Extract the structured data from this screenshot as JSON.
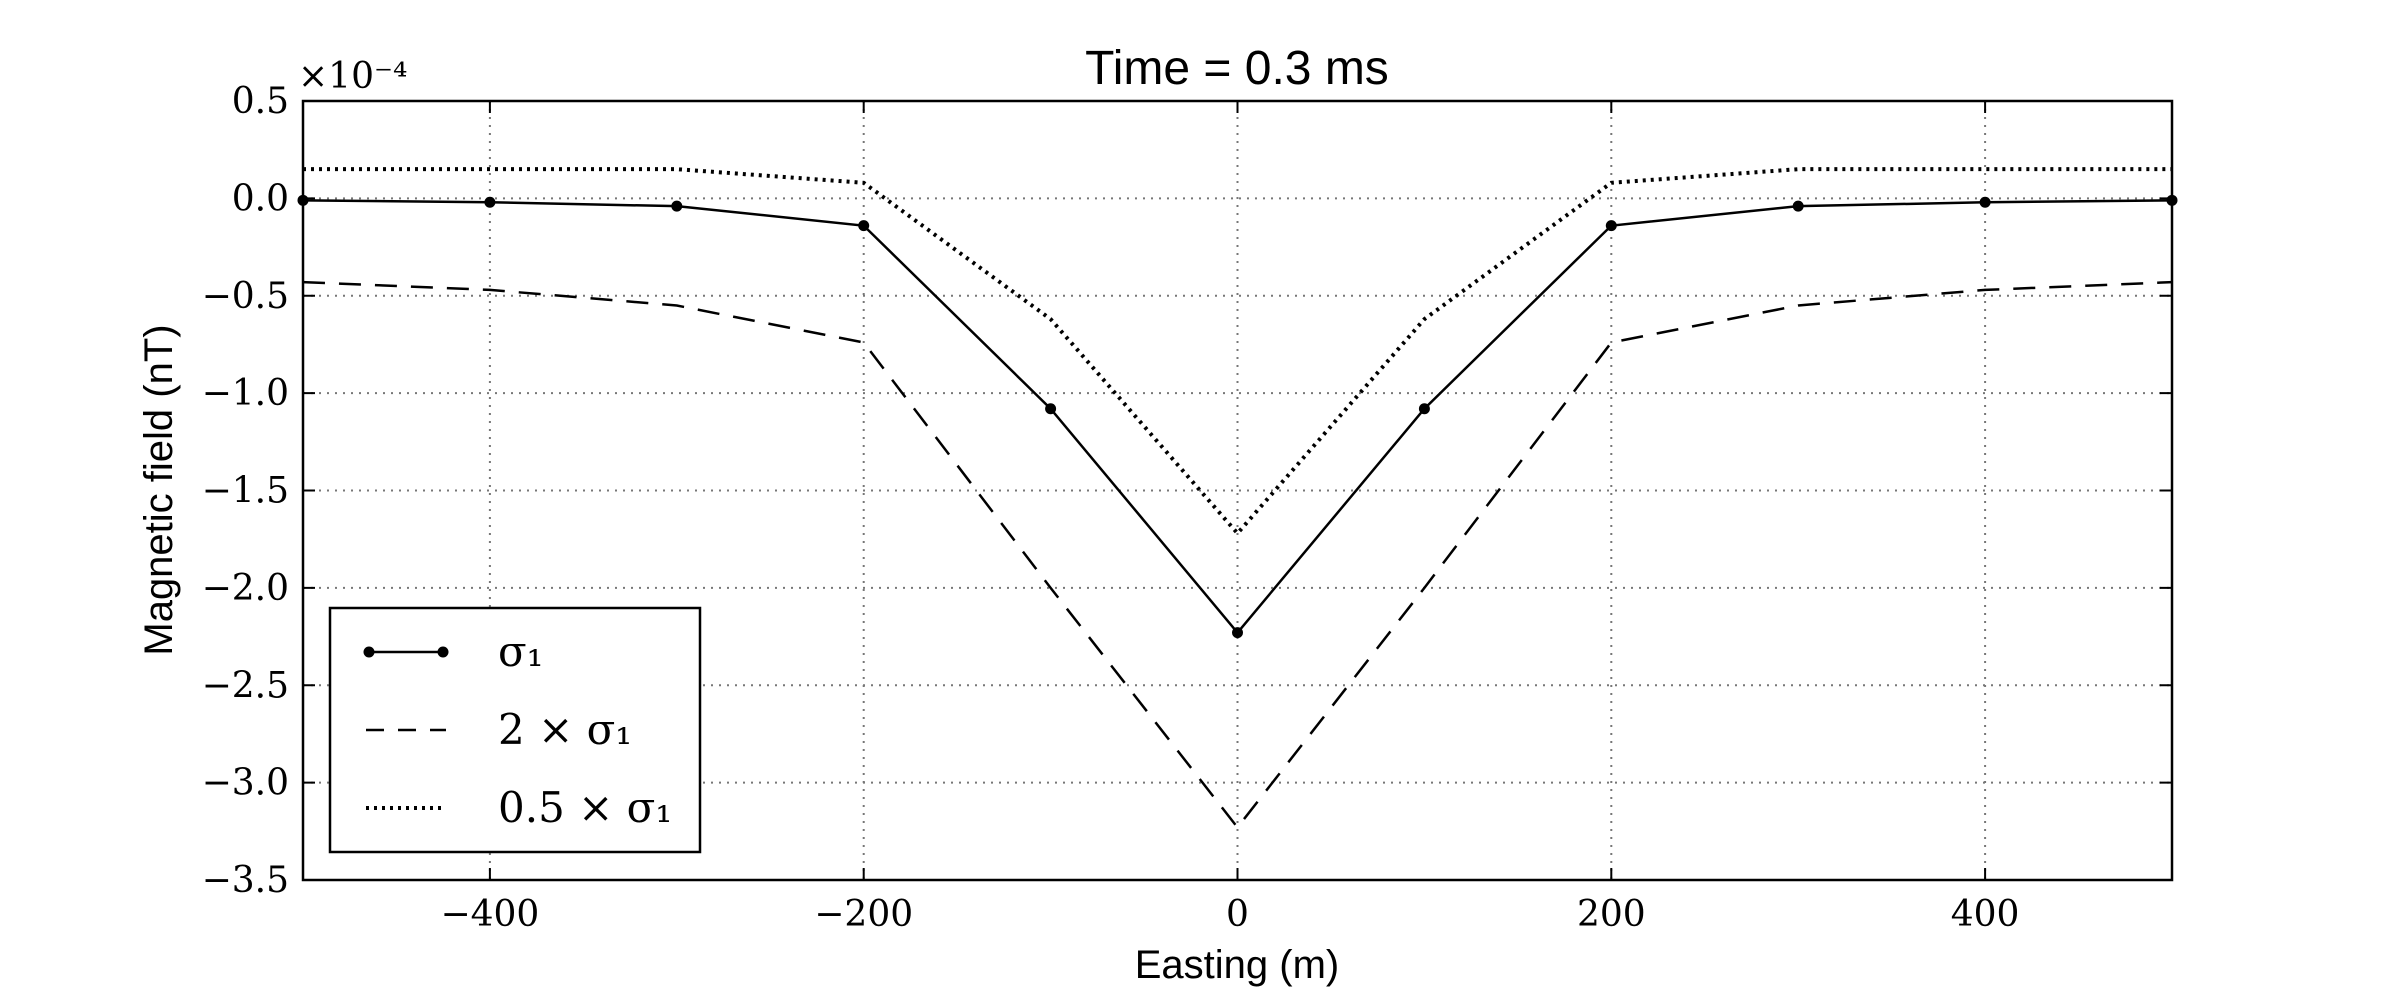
{
  "chart_data": {
    "type": "line",
    "title": "Time = 0.3 ms",
    "xlabel": "Easting (m)",
    "ylabel": "Magnetic field (nT)",
    "y_scale_label": "×10⁻⁴",
    "xlim": [
      -500,
      500
    ],
    "ylim": [
      -3.5,
      0.5
    ],
    "x_ticks": [
      -400,
      -200,
      0,
      200,
      400
    ],
    "x_tick_labels": [
      "−400",
      "−200",
      "0",
      "200",
      "400"
    ],
    "y_ticks": [
      0.5,
      0.0,
      -0.5,
      -1.0,
      -1.5,
      -2.0,
      -2.5,
      -3.0,
      -3.5
    ],
    "y_tick_labels": [
      "0.5",
      "0.0",
      "−0.5",
      "−1.0",
      "−1.5",
      "−2.0",
      "−2.5",
      "−3.0",
      "−3.5"
    ],
    "grid": true,
    "legend_position": "bottom-left",
    "x": [
      -500,
      -400,
      -300,
      -200,
      -100,
      0,
      100,
      200,
      300,
      400,
      500
    ],
    "series": [
      {
        "name": "σ₁",
        "style": "solid-markers",
        "color": "#000000",
        "values": [
          -0.01,
          -0.02,
          -0.04,
          -0.14,
          -1.08,
          -2.23,
          -1.08,
          -0.14,
          -0.04,
          -0.02,
          -0.01
        ]
      },
      {
        "name": "2 × σ₁",
        "style": "dashed",
        "color": "#000000",
        "values": [
          -0.43,
          -0.47,
          -0.55,
          -0.74,
          -2.0,
          -3.23,
          -2.0,
          -0.74,
          -0.55,
          -0.47,
          -0.43
        ]
      },
      {
        "name": "0.5 × σ₁",
        "style": "dotted",
        "color": "#000000",
        "values": [
          0.15,
          0.15,
          0.15,
          0.08,
          -0.62,
          -1.72,
          -0.62,
          0.08,
          0.15,
          0.15,
          0.15
        ]
      }
    ]
  }
}
